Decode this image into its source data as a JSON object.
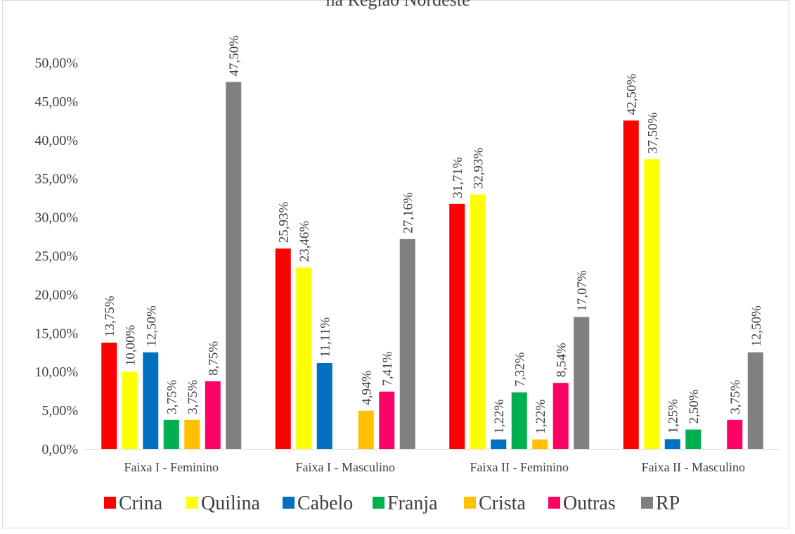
{
  "chart_data": {
    "type": "bar",
    "title": "na Região Nordeste",
    "xlabel": "",
    "ylabel": "",
    "ylim": [
      0,
      50
    ],
    "y_tick_labels": [
      "0,00%",
      "5,00%",
      "10,00%",
      "15,00%",
      "20,00%",
      "25,00%",
      "30,00%",
      "35,00%",
      "40,00%",
      "45,00%",
      "50,00%"
    ],
    "grid": false,
    "legend_position": "bottom",
    "categories": [
      "Faixa I - Feminino",
      "Faixa I - Masculino",
      "Faixa II - Feminino",
      "Faixa II - Masculino"
    ],
    "series": [
      {
        "name": "Crina",
        "color": "#ff0000",
        "values": [
          13.75,
          25.93,
          31.71,
          42.5
        ],
        "labels": [
          "13,75%",
          "25,93%",
          "31,71%",
          "42,50%"
        ]
      },
      {
        "name": "Quilina",
        "color": "#ffff00",
        "values": [
          10.0,
          23.46,
          32.93,
          37.5
        ],
        "labels": [
          "10,00%",
          "23,46%",
          "32,93%",
          "37,50%"
        ]
      },
      {
        "name": "Cabelo",
        "color": "#0070c0",
        "values": [
          12.5,
          11.11,
          1.22,
          1.25
        ],
        "labels": [
          "12,50%",
          "11,11%",
          "1,22%",
          "1,25%"
        ]
      },
      {
        "name": "Franja",
        "color": "#00b050",
        "values": [
          3.75,
          null,
          7.32,
          2.5
        ],
        "labels": [
          "3,75%",
          "",
          "7,32%",
          "2,50%"
        ]
      },
      {
        "name": "Crista",
        "color": "#ffc000",
        "values": [
          3.75,
          4.94,
          1.22,
          null
        ],
        "labels": [
          "3,75%",
          "4,94%",
          "1,22%",
          ""
        ]
      },
      {
        "name": "Outras",
        "color": "#ff0066",
        "values": [
          8.75,
          7.41,
          8.54,
          3.75
        ],
        "labels": [
          "8,75%",
          "7,41%",
          "8,54%",
          "3,75%"
        ]
      },
      {
        "name": "RP",
        "color": "#808080",
        "values": [
          47.5,
          27.16,
          17.07,
          12.5
        ],
        "labels": [
          "47,50%",
          "27,16%",
          "17,07%",
          "12,50%"
        ]
      }
    ]
  }
}
